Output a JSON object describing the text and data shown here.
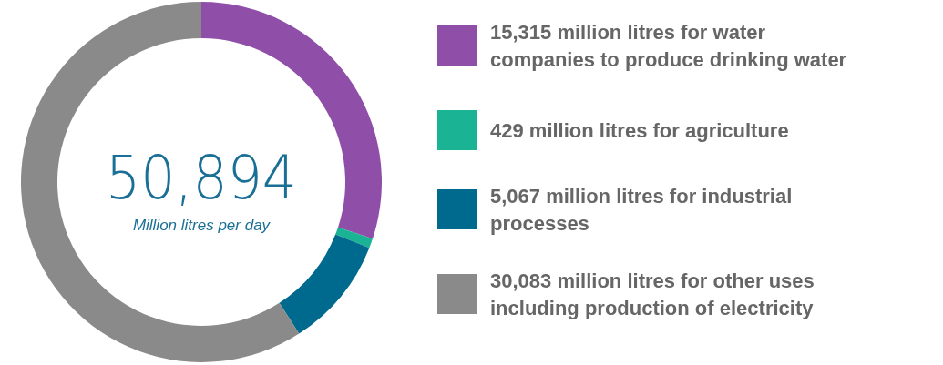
{
  "chart_data": {
    "type": "donut",
    "title": "50,894",
    "subtitle": "Million litres per day",
    "categories": [
      "15,315 million litres for water companies to produce drinking water",
      "429 million litres for agriculture",
      "5,067 million litres for industrial processes",
      "30,083 million litres for other uses including production of electricity"
    ],
    "values": [
      15315,
      429,
      5067,
      30083
    ],
    "colors": [
      "#8f4fa8",
      "#1ab394",
      "#006a8e",
      "#8a8a8a"
    ],
    "legend": "right"
  }
}
